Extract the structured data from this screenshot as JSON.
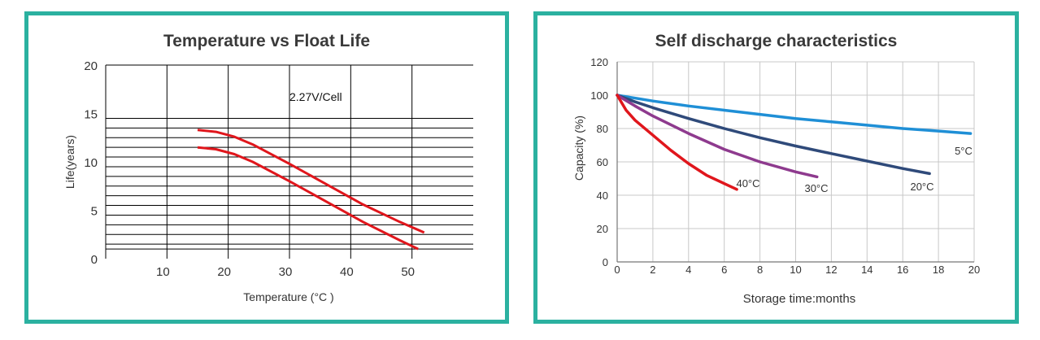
{
  "colors": {
    "frame": "#2bb1a0",
    "left_curve": "#e0161c",
    "c5": "#1f8fd6",
    "c20": "#2f4a7a",
    "c30": "#8e3a8e",
    "c40": "#e0161c"
  },
  "chart_data": [
    {
      "type": "line",
      "title": "Temperature vs Float Life",
      "xlabel": "Temperature (°C )",
      "ylabel": "Life(years)",
      "annotation": "2.27V/Cell",
      "xlim": [
        0,
        60
      ],
      "ylim": [
        0,
        20
      ],
      "x_ticks": [
        10,
        20,
        30,
        40,
        50
      ],
      "y_ticks": [
        0,
        5,
        10,
        15,
        20
      ],
      "x_grid": [
        10,
        20,
        30,
        40,
        50
      ],
      "y_grid": [
        1,
        1.5,
        2.5,
        3.5,
        4.5,
        5.5,
        6.5,
        7.5,
        8.5,
        9.5,
        10.5,
        11.5,
        12.5,
        13.5,
        14.5
      ],
      "series": [
        {
          "name": "upper",
          "x": [
            15,
            18,
            21,
            24,
            30,
            36,
            42,
            48,
            52
          ],
          "y": [
            13.3,
            13.1,
            12.6,
            11.8,
            9.8,
            7.7,
            5.6,
            3.8,
            2.7
          ]
        },
        {
          "name": "lower",
          "x": [
            15,
            18,
            21,
            24,
            30,
            36,
            42,
            48,
            51
          ],
          "y": [
            11.5,
            11.3,
            10.8,
            10.0,
            8.0,
            5.9,
            3.8,
            1.9,
            1.0
          ]
        }
      ]
    },
    {
      "type": "line",
      "title": "Self discharge characteristics",
      "xlabel": "Storage time:months",
      "ylabel": "Capacity (%)",
      "xlim": [
        0,
        20
      ],
      "ylim": [
        0,
        120
      ],
      "x_ticks": [
        0,
        2,
        4,
        6,
        8,
        10,
        12,
        14,
        16,
        18,
        20
      ],
      "y_ticks": [
        0,
        20,
        40,
        60,
        80,
        100,
        120
      ],
      "series": [
        {
          "name": "5°C",
          "label_text": "5°C",
          "x": [
            0,
            2,
            4,
            6,
            8,
            10,
            12,
            14,
            16,
            18,
            19.8
          ],
          "y": [
            100,
            96.5,
            93.5,
            91,
            88.5,
            86,
            84,
            82,
            80,
            78.5,
            77
          ]
        },
        {
          "name": "20°C",
          "label_text": "20°C",
          "x": [
            0,
            1,
            2,
            4,
            6,
            8,
            10,
            12,
            14,
            16,
            17.5
          ],
          "y": [
            100,
            96,
            92.5,
            86,
            80,
            74.5,
            69.5,
            65,
            60.5,
            56,
            53
          ]
        },
        {
          "name": "30°C",
          "label_text": "30°C",
          "x": [
            0,
            1,
            2,
            4,
            6,
            8,
            10,
            11.2
          ],
          "y": [
            100,
            93.5,
            87.5,
            77,
            67.5,
            60,
            54,
            51
          ]
        },
        {
          "name": "40°C",
          "label_text": "40°C",
          "x": [
            0,
            0.5,
            1,
            2,
            3,
            4,
            5,
            6,
            6.7
          ],
          "y": [
            100,
            91,
            85,
            76,
            67,
            59,
            52,
            47,
            43.5
          ]
        }
      ]
    }
  ]
}
